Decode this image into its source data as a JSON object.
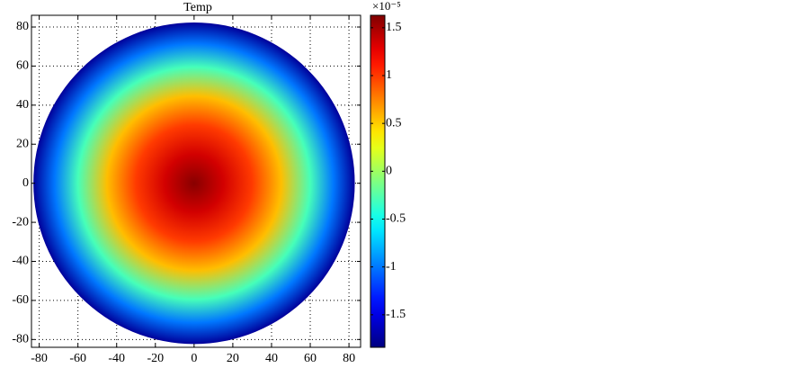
{
  "chart_data": {
    "type": "heatmap",
    "title": "Temp",
    "xlim": [
      -84,
      86
    ],
    "ylim": [
      -84,
      86
    ],
    "xticks": [
      -80,
      -60,
      -40,
      -20,
      0,
      20,
      40,
      60,
      80
    ],
    "yticks": [
      -80,
      -60,
      -40,
      -20,
      0,
      20,
      40,
      60,
      80
    ],
    "grid": true,
    "colormap": "jet",
    "radius": 83,
    "r": [
      0,
      15,
      30,
      45,
      60,
      72,
      83
    ],
    "values": [
      1.6,
      1.35,
      1.0,
      0.55,
      -0.3,
      -1.0,
      -1.75
    ],
    "clim": [
      -1.84,
      1.63
    ],
    "cticks": [
      -1.5,
      -1,
      -0.5,
      0,
      0.5,
      1,
      1.5
    ],
    "colorbar_label": "×10⁻⁵"
  }
}
